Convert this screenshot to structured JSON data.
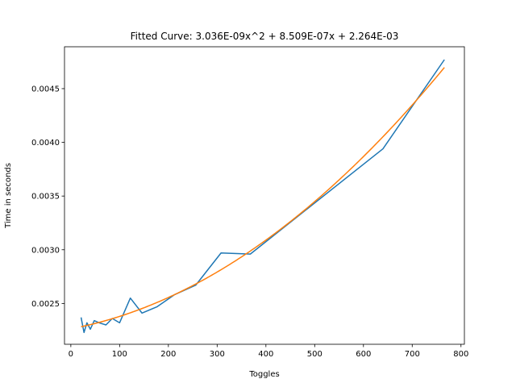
{
  "chart_data": {
    "type": "line",
    "title": "Fitted Curve: 3.036E-09x^2 + 8.509E-07x + 2.264E-03",
    "xlabel": "Toggles",
    "ylabel": "Time in seconds",
    "xlim": [
      -13,
      807
    ],
    "ylim": [
      0.00212,
      0.00489
    ],
    "xticks": [
      0,
      100,
      200,
      300,
      400,
      500,
      600,
      700,
      800
    ],
    "xtick_labels": [
      "0",
      "100",
      "200",
      "300",
      "400",
      "500",
      "600",
      "700",
      "800"
    ],
    "yticks": [
      0.0025,
      0.003,
      0.0035,
      0.004,
      0.0045
    ],
    "ytick_labels": [
      "0.0025",
      "0.0030",
      "0.0035",
      "0.0040",
      "0.0045"
    ],
    "grid": false,
    "series": [
      {
        "color": "#1f77b4",
        "x": [
          21,
          27,
          33,
          40,
          48,
          58,
          72,
          85,
          100,
          122,
          146,
          177,
          212,
          256,
          308,
          368,
          640,
          766
        ],
        "y": [
          0.00237,
          0.00223,
          0.00232,
          0.00226,
          0.00234,
          0.00232,
          0.0023,
          0.00236,
          0.00232,
          0.00255,
          0.00241,
          0.00247,
          0.00258,
          0.00267,
          0.00297,
          0.00296,
          0.00394,
          0.00477
        ]
      },
      {
        "color": "#ff7f0e",
        "coefficients": [
          3.036e-09,
          8.509e-07,
          0.002264
        ],
        "x_range": [
          21,
          766
        ]
      }
    ]
  }
}
